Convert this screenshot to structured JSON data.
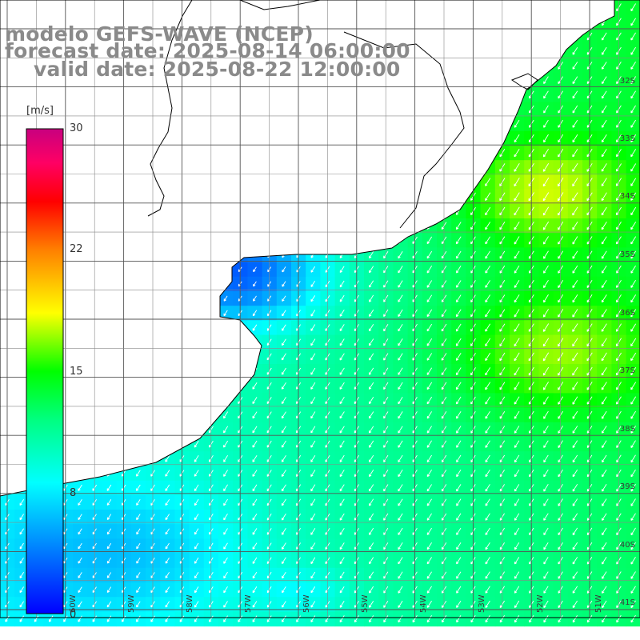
{
  "header": {
    "model": "modelo GEFS-WAVE (NCEP)",
    "forecast": "forecast date: 2025-08-14 06:00:00",
    "valid": "valid date: 2025-08-22 12:00:00"
  },
  "colorbar": {
    "unit": "[m/s]",
    "ticks": [
      "30",
      "22",
      "15",
      "8",
      "0"
    ],
    "tick_values": [
      30,
      22,
      15,
      8,
      0
    ],
    "min": 0,
    "max": 30,
    "colors": [
      "#0000ff",
      "#00b4ff",
      "#00ffff",
      "#00ff7f",
      "#00ff00",
      "#ffff00",
      "#ff8000",
      "#ff0000",
      "#ff0064",
      "#c8007f"
    ]
  },
  "map": {
    "land_color": "#ffffff",
    "grid_color": "#666666",
    "coast_color": "#000000",
    "arrow_color": "#ffffff",
    "lat_labels": [
      "32S",
      "33S",
      "34S",
      "35S",
      "36S",
      "37S",
      "38S",
      "39S",
      "40S",
      "41S"
    ],
    "lon_labels": [
      "60W",
      "59W",
      "58W",
      "57W",
      "56W",
      "55W",
      "54W",
      "53W",
      "52W",
      "51W"
    ]
  }
}
